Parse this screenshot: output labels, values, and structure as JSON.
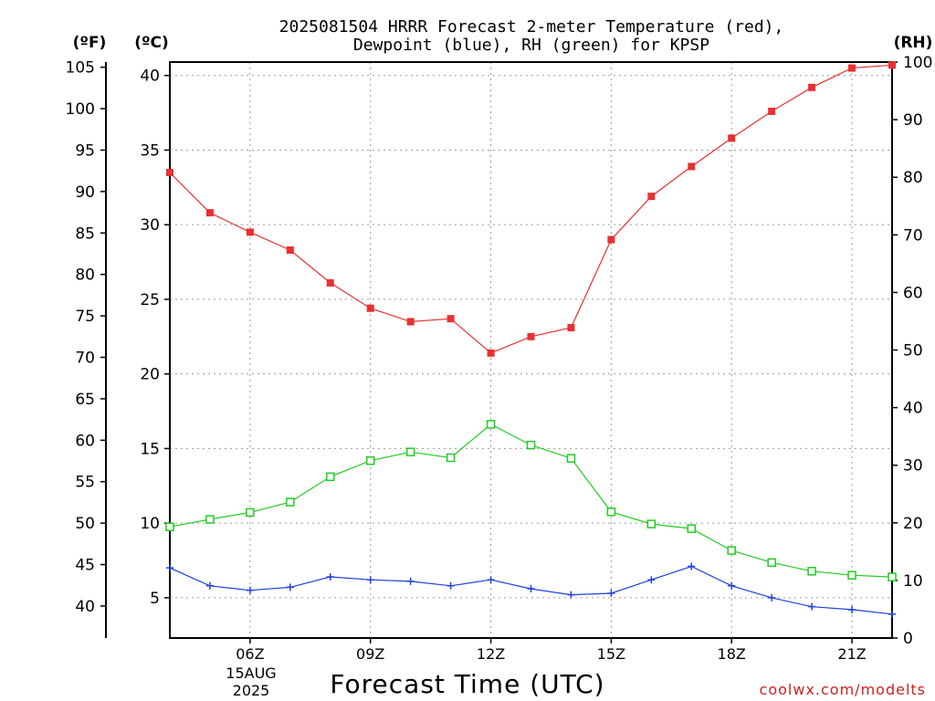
{
  "chart_data": {
    "type": "line",
    "title_line1": "2025081504 HRRR Forecast 2-meter Temperature (red),",
    "title_line2": "Dewpoint (blue), RH (green) for KPSP",
    "xlabel": "Forecast Time (UTC)",
    "credit": "coolwx.com/modelts",
    "units": {
      "f": "(ºF)",
      "c": "(ºC)",
      "rh": "(RH)"
    },
    "x_range_hours": [
      4,
      22
    ],
    "x_ticks": [
      {
        "hour": 6,
        "label": "06Z"
      },
      {
        "hour": 9,
        "label": "09Z"
      },
      {
        "hour": 12,
        "label": "12Z"
      },
      {
        "hour": 15,
        "label": "15Z"
      },
      {
        "hour": 18,
        "label": "18Z"
      },
      {
        "hour": 21,
        "label": "21Z"
      }
    ],
    "date_label": [
      "15AUG",
      "2025"
    ],
    "celsius_axis": {
      "range": [
        2.3,
        40.9
      ],
      "ticks": [
        5,
        10,
        15,
        20,
        25,
        30,
        35,
        40
      ]
    },
    "fahrenheit_axis": {
      "ticks": [
        40,
        45,
        50,
        55,
        60,
        65,
        70,
        75,
        80,
        85,
        90,
        95,
        100,
        105
      ]
    },
    "rh_axis": {
      "range": [
        0,
        100
      ],
      "ticks": [
        0,
        10,
        20,
        30,
        40,
        50,
        60,
        70,
        80,
        90,
        100
      ]
    },
    "x": [
      4,
      5,
      6,
      7,
      8,
      9,
      10,
      11,
      12,
      13,
      14,
      15,
      16,
      17,
      18,
      19,
      20,
      21,
      22
    ],
    "series": [
      {
        "key": "temperature",
        "color": "#e83030",
        "marker": "filled-square",
        "axis": "celsius",
        "values": [
          33.5,
          30.8,
          29.5,
          28.3,
          26.1,
          24.4,
          23.5,
          23.7,
          21.4,
          22.5,
          23.1,
          29.0,
          31.9,
          33.9,
          35.8,
          37.6,
          39.2,
          40.5,
          40.7
        ]
      },
      {
        "key": "dewpoint",
        "color": "#2040e0",
        "marker": "plus",
        "axis": "celsius",
        "values": [
          7.0,
          5.8,
          5.5,
          5.7,
          6.4,
          6.2,
          6.1,
          5.8,
          6.2,
          5.6,
          5.2,
          5.3,
          6.2,
          7.1,
          5.8,
          5.0,
          4.4,
          4.2,
          3.9
        ]
      },
      {
        "key": "rh",
        "color": "#20cc20",
        "marker": "open-square",
        "axis": "rh",
        "values": [
          19.3,
          20.6,
          21.8,
          23.6,
          28.0,
          30.8,
          32.3,
          31.3,
          37.1,
          33.5,
          31.2,
          21.9,
          19.8,
          19.0,
          15.2,
          13.1,
          11.6,
          10.9,
          10.6
        ]
      }
    ]
  }
}
